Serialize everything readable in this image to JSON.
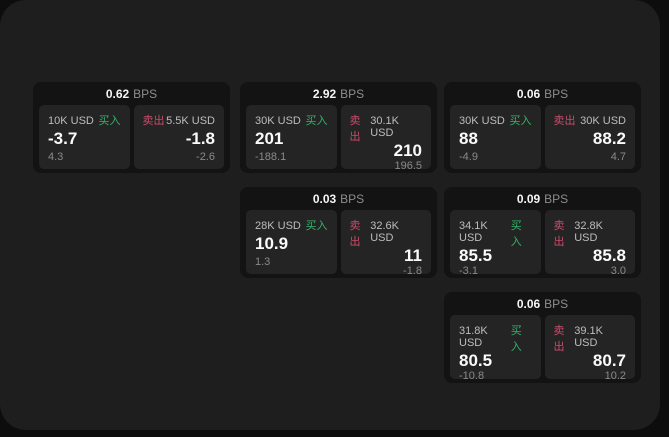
{
  "labels": {
    "bps_unit": "BPS",
    "buy": "买入",
    "sell": "卖出"
  },
  "colors": {
    "buy_green": "#34b368",
    "sell_red": "#ca4c6c",
    "window_bg": "#1e1e1e",
    "card_bg": "#131313",
    "panel_bg": "#242424"
  },
  "cards": [
    {
      "bps": "0.62",
      "buy": {
        "amount": "10K USD",
        "price": "-3.7",
        "delta": "4.3"
      },
      "sell": {
        "amount": "5.5K USD",
        "price": "-1.8",
        "delta": "-2.6"
      }
    },
    {
      "bps": "2.92",
      "buy": {
        "amount": "30K USD",
        "price": "201",
        "delta": "-188.1"
      },
      "sell": {
        "amount": "30.1K USD",
        "price": "210",
        "delta": "196.5"
      }
    },
    {
      "bps": "0.06",
      "buy": {
        "amount": "30K USD",
        "price": "88",
        "delta": "-4.9"
      },
      "sell": {
        "amount": "30K USD",
        "price": "88.2",
        "delta": "4.7"
      }
    },
    {
      "bps": "0.03",
      "buy": {
        "amount": "28K USD",
        "price": "10.9",
        "delta": "1.3"
      },
      "sell": {
        "amount": "32.6K USD",
        "price": "11",
        "delta": "-1.8"
      }
    },
    {
      "bps": "0.09",
      "buy": {
        "amount": "34.1K USD",
        "price": "85.5",
        "delta": "-3.1"
      },
      "sell": {
        "amount": "32.8K USD",
        "price": "85.8",
        "delta": "3.0"
      }
    },
    {
      "bps": "0.06",
      "buy": {
        "amount": "31.8K USD",
        "price": "80.5",
        "delta": "-10.8"
      },
      "sell": {
        "amount": "39.1K USD",
        "price": "80.7",
        "delta": "10.2"
      }
    }
  ]
}
